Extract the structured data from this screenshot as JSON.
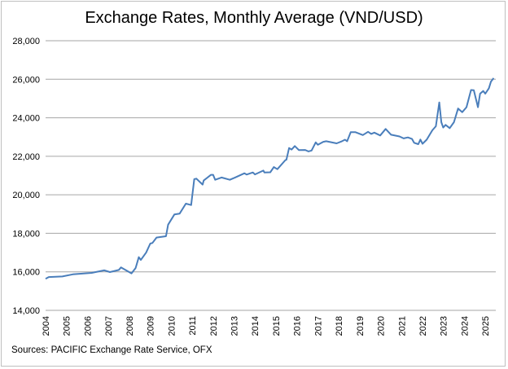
{
  "chart_data": {
    "type": "line",
    "title": "Exchange Rates, Monthly Average (VND/USD)",
    "source": "Sources: PACIFIC Exchange Rate Service, OFX",
    "xlabel": "",
    "ylabel": "",
    "ylim": [
      14000,
      28000
    ],
    "xlim": [
      2004,
      2025.5
    ],
    "yticks": [
      "14,000",
      "16,000",
      "18,000",
      "20,000",
      "22,000",
      "24,000",
      "26,000",
      "28,000"
    ],
    "xticks": [
      "2004",
      "2005",
      "2006",
      "2007",
      "2008",
      "2009",
      "2010",
      "2011",
      "2012",
      "2013",
      "2014",
      "2015",
      "2016",
      "2017",
      "2018",
      "2019",
      "2020",
      "2021",
      "2022",
      "2023",
      "2024",
      "2025"
    ],
    "grid": "horizontal",
    "legend": "none",
    "line_color": "#4a7ebb",
    "series": [
      {
        "x": [
          2004.0,
          2004.15,
          2004.8,
          2005.3,
          2006.2,
          2006.8,
          2007.07,
          2007.5,
          2007.6,
          2008.1,
          2008.3,
          2008.45,
          2008.55,
          2008.8,
          2009.0,
          2009.1,
          2009.3,
          2009.75,
          2009.85,
          2010.15,
          2010.4,
          2010.7,
          2010.95,
          2011.1,
          2011.2,
          2011.5,
          2011.55,
          2011.9,
          2012.0,
          2012.1,
          2012.4,
          2012.8,
          2013.05,
          2013.5,
          2013.6,
          2013.9,
          2014.0,
          2014.4,
          2014.45,
          2014.73,
          2014.9,
          2015.07,
          2015.45,
          2015.5,
          2015.63,
          2015.75,
          2015.9,
          2016.1,
          2016.4,
          2016.55,
          2016.7,
          2016.9,
          2017.0,
          2017.26,
          2017.4,
          2017.9,
          2018.15,
          2018.3,
          2018.4,
          2018.57,
          2018.8,
          2019.15,
          2019.4,
          2019.55,
          2019.7,
          2019.98,
          2020.24,
          2020.5,
          2020.9,
          2021.1,
          2021.3,
          2021.5,
          2021.6,
          2021.8,
          2021.9,
          2022.0,
          2022.2,
          2022.47,
          2022.64,
          2022.8,
          2022.9,
          2022.99,
          2023.1,
          2023.3,
          2023.5,
          2023.7,
          2023.9,
          2024.1,
          2024.32,
          2024.45,
          2024.65,
          2024.75,
          2024.9,
          2025.0,
          2025.17,
          2025.27,
          2025.4
        ],
        "y": [
          15640,
          15730,
          15760,
          15870,
          15945,
          16080,
          15990,
          16100,
          16230,
          15920,
          16200,
          16760,
          16620,
          17000,
          17470,
          17500,
          17780,
          17850,
          18450,
          18980,
          19020,
          19540,
          19470,
          20810,
          20840,
          20530,
          20740,
          21040,
          21040,
          20780,
          20900,
          20780,
          20900,
          21120,
          21050,
          21160,
          21060,
          21260,
          21160,
          21170,
          21440,
          21330,
          21800,
          21820,
          22430,
          22350,
          22530,
          22320,
          22330,
          22250,
          22300,
          22720,
          22600,
          22750,
          22780,
          22670,
          22780,
          22860,
          22780,
          23250,
          23250,
          23100,
          23270,
          23160,
          23230,
          23080,
          23420,
          23120,
          23030,
          22930,
          22980,
          22900,
          22700,
          22630,
          22870,
          22650,
          22860,
          23350,
          23560,
          24800,
          23770,
          23490,
          23630,
          23460,
          23770,
          24480,
          24290,
          24550,
          25440,
          25430,
          24550,
          25250,
          25390,
          25250,
          25530,
          25880,
          26060
        ]
      }
    ]
  }
}
